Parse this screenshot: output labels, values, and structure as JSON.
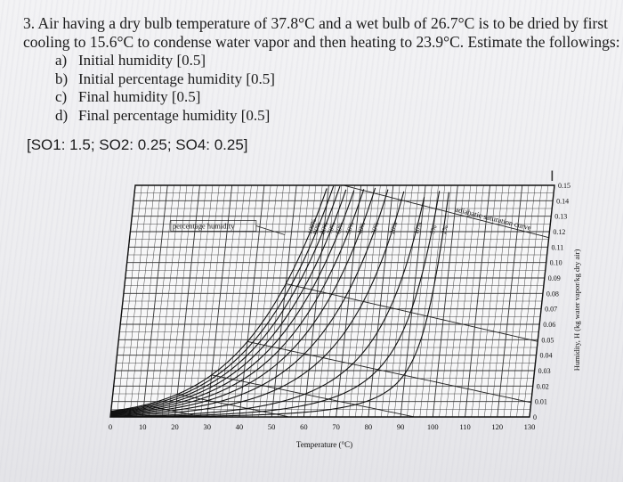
{
  "problem": {
    "line1": "3. Air having a dry bulb temperature of 37.8°C and a wet bulb of 26.7°C is to be dried by first",
    "line2": "cooling to 15.6°C to condense water vapor and then heating to 23.9°C. Estimate the followings:",
    "items": [
      {
        "label": "a)",
        "text": "Initial humidity [0.5]"
      },
      {
        "label": "b)",
        "text": "Initial percentage humidity [0.5]"
      },
      {
        "label": "c)",
        "text": "Final humidity [0.5]"
      },
      {
        "label": "d)",
        "text": "Final percentage humidity [0.5]"
      }
    ],
    "so_marks": "[SO1: 1.5; SO2: 0.25; SO4: 0.25]"
  },
  "cursor_glyph": "I",
  "chart_data": {
    "type": "line",
    "title": "",
    "xlabel": "Temperature (°C)",
    "ylabel": "Humidity, H (kg water vapor/kg dry air)",
    "xlim": [
      0,
      130
    ],
    "ylim": [
      0,
      0.15
    ],
    "x_ticks": [
      "0",
      "10",
      "20",
      "30",
      "40",
      "50",
      "60",
      "70",
      "80",
      "90",
      "100",
      "110",
      "120",
      "130"
    ],
    "y_ticks": [
      "0",
      "0.01",
      "0.02",
      "0.03",
      "0.04",
      "0.05",
      "0.06",
      "0.07",
      "0.08",
      "0.09",
      "0.10",
      "0.11",
      "0.12",
      "0.13",
      "0.14",
      "0.15"
    ],
    "grid": true,
    "annotations": {
      "percentage_humidity": "percentage humidity",
      "adiabatic_saturation_curve": "adiabatic saturation curve"
    },
    "series": [
      {
        "name": "100%",
        "fraction": 1.0
      },
      {
        "name": "90%",
        "fraction": 0.9
      },
      {
        "name": "80%",
        "fraction": 0.8
      },
      {
        "name": "70%",
        "fraction": 0.7
      },
      {
        "name": "60%",
        "fraction": 0.6
      },
      {
        "name": "50%",
        "fraction": 0.5
      },
      {
        "name": "40%",
        "fraction": 0.4
      },
      {
        "name": "30%",
        "fraction": 0.3
      },
      {
        "name": "20%",
        "fraction": 0.2
      },
      {
        "name": "10%",
        "fraction": 0.1
      },
      {
        "name": "5%",
        "fraction": 0.05
      },
      {
        "name": "2%",
        "fraction": 0.02
      }
    ],
    "adiabatic_lines_start_temps_c": [
      10,
      20,
      30,
      40,
      50,
      60,
      70,
      80,
      90,
      100,
      110,
      120,
      130,
      140,
      150,
      160,
      170,
      180
    ]
  }
}
